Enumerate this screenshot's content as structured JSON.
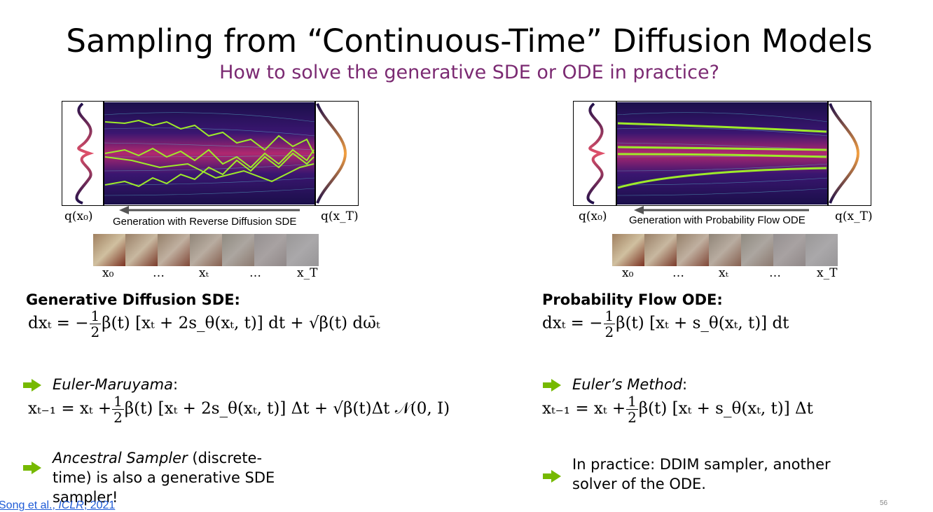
{
  "title": "Sampling from “Continuous-Time” Diffusion Models",
  "subtitle": "How to solve the generative SDE or ODE in practice?",
  "colors": {
    "accent": "#7b2a72",
    "arrow_green": "#76b900",
    "link": "#1f5bd6"
  },
  "left": {
    "q_x0": "q(x₀)",
    "q_xT": "q(x_T)",
    "caption": "Generation with Reverse Diffusion SDE",
    "strip_labels": [
      "x₀",
      "…",
      "xₜ",
      "…",
      "x_T"
    ],
    "heading": "Generative Diffusion SDE:",
    "eq_lhs": "dxₜ = −",
    "eq_rhs": "β(t) [xₜ + 2s_θ(xₜ, t)] dt + √β(t) dω̄ₜ",
    "bullet1_title": "Euler-Maruyama",
    "bullet1_colon": ":",
    "eq2_lhs": "xₜ₋₁ = xₜ +",
    "eq2_rhs": "β(t) [xₜ + 2s_θ(xₜ, t)] Δt + √β(t)Δt 𝒩(0, I)",
    "bullet2_title": "Ancestral Sampler",
    "bullet2_rest": " (discrete-time) is also a generative SDE sampler!"
  },
  "right": {
    "q_x0": "q(x₀)",
    "q_xT": "q(x_T)",
    "caption": "Generation with Probability Flow ODE",
    "strip_labels": [
      "x₀",
      "…",
      "xₜ",
      "…",
      "x_T"
    ],
    "heading": "Probability Flow ODE:",
    "eq_lhs": "dxₜ = −",
    "eq_rhs": "β(t) [xₜ + s_θ(xₜ, t)] dt",
    "bullet1_title": "Euler’s Method",
    "bullet1_colon": ":",
    "eq2_lhs": "xₜ₋₁ = xₜ +",
    "eq2_rhs": "β(t) [xₜ + s_θ(xₜ, t)] Δt",
    "bullet2_text": "In practice: DDIM sampler, another solver of the ODE."
  },
  "frac_num": "1",
  "frac_den": "2",
  "reference": {
    "authors": "Song et al., ",
    "venue": "ICLR",
    "year": ", 2021"
  },
  "page_number": "56"
}
